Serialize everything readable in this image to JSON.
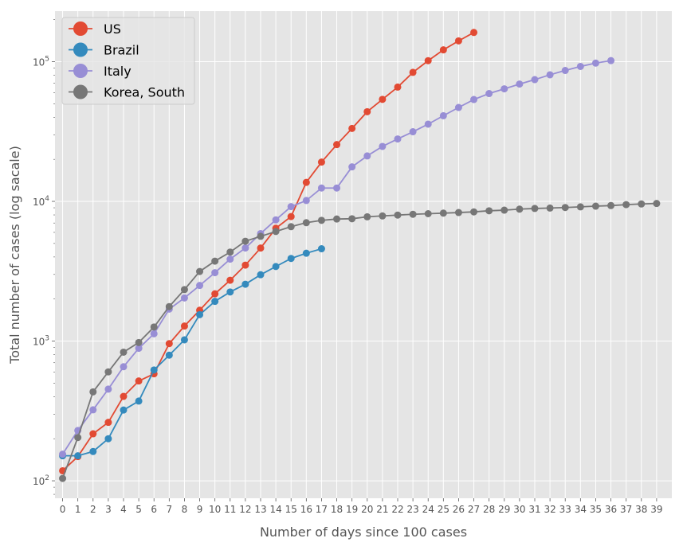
{
  "chart_data": {
    "type": "line",
    "title": "",
    "xlabel": "Number of days since 100 cases",
    "ylabel": "Total number of cases  (log sacale)",
    "yscale": "log",
    "xlim": [
      -0.5,
      40
    ],
    "ylim": [
      75,
      230000
    ],
    "grid": true,
    "legend_position": "top-left",
    "x_ticks": [
      0,
      1,
      2,
      3,
      4,
      5,
      6,
      7,
      8,
      9,
      10,
      11,
      12,
      13,
      14,
      15,
      16,
      17,
      18,
      19,
      20,
      21,
      22,
      23,
      24,
      25,
      26,
      27,
      28,
      29,
      30,
      31,
      32,
      33,
      34,
      35,
      36,
      37,
      38,
      39
    ],
    "y_ticks": [
      {
        "value": 100,
        "base": "10",
        "exp": "2"
      },
      {
        "value": 1000,
        "base": "10",
        "exp": "3"
      },
      {
        "value": 10000,
        "base": "10",
        "exp": "4"
      },
      {
        "value": 100000,
        "base": "10",
        "exp": "5"
      }
    ],
    "series": [
      {
        "name": "US",
        "color": "#E24A33",
        "values": [
          118,
          149,
          217,
          262,
          402,
          518,
          583,
          959,
          1281,
          1663,
          2179,
          2726,
          3499,
          4632,
          6421,
          7786,
          13680,
          19101,
          25493,
          33276,
          43847,
          53740,
          65778,
          83836,
          101657,
          121478,
          140886,
          161807
        ]
      },
      {
        "name": "Brazil",
        "color": "#348ABD",
        "values": [
          151,
          151,
          162,
          200,
          321,
          372,
          621,
          793,
          1021,
          1546,
          1924,
          2247,
          2554,
          2985,
          3417,
          3904,
          4256,
          4579
        ]
      },
      {
        "name": "Italy",
        "color": "#988ED5",
        "values": [
          155,
          229,
          322,
          453,
          655,
          888,
          1128,
          1694,
          2036,
          2502,
          3089,
          3858,
          4636,
          5883,
          7375,
          9172,
          10149,
          12462,
          12462,
          17660,
          21157,
          24747,
          27980,
          31506,
          35713,
          41035,
          47021,
          53578,
          59138,
          63927,
          69176,
          74386,
          80589,
          86498,
          92472,
          97689,
          101739
        ]
      },
      {
        "name": "Korea, South",
        "color": "#777777",
        "values": [
          104,
          204,
          433,
          602,
          833,
          977,
          1261,
          1766,
          2337,
          3150,
          3736,
          4335,
          5186,
          5621,
          6088,
          6593,
          7041,
          7314,
          7478,
          7513,
          7755,
          7869,
          7979,
          8086,
          8162,
          8236,
          8320,
          8413,
          8565,
          8652,
          8799,
          8897,
          8961,
          9037,
          9137,
          9241,
          9332,
          9478,
          9583,
          9661
        ]
      }
    ]
  }
}
